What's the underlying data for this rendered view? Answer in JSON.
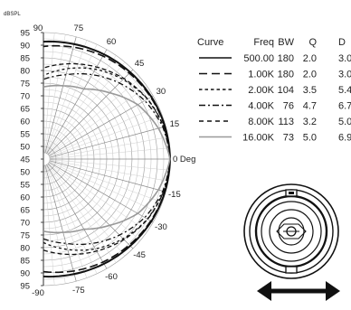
{
  "polar_plot": {
    "unit_label": "dBSPL",
    "db_labels": [
      "95",
      "90",
      "85",
      "80",
      "75",
      "70",
      "65",
      "60",
      "55",
      "50",
      "45",
      "50",
      "55",
      "60",
      "65",
      "70",
      "75",
      "80",
      "85",
      "90",
      "95"
    ],
    "angle_labels": [
      {
        "deg": 90,
        "text": "90"
      },
      {
        "deg": 75,
        "text": "75"
      },
      {
        "deg": 60,
        "text": "60"
      },
      {
        "deg": 45,
        "text": "45"
      },
      {
        "deg": 30,
        "text": "30"
      },
      {
        "deg": 15,
        "text": "15"
      },
      {
        "deg": 0,
        "text": "0 Deg"
      },
      {
        "deg": -15,
        "text": "-15"
      },
      {
        "deg": -30,
        "text": "-30"
      },
      {
        "deg": -45,
        "text": "-45"
      },
      {
        "deg": -60,
        "text": "-60"
      },
      {
        "deg": -75,
        "text": "-75"
      },
      {
        "deg": -90,
        "text": "-90"
      }
    ]
  },
  "legend": {
    "headers": {
      "curve": "Curve",
      "freq": "Freq",
      "bw": "BW",
      "q": "Q",
      "d": "D"
    },
    "rows": [
      {
        "style": "solid",
        "color": "#111111",
        "freq": "500.00",
        "bw": "180",
        "q": "2.0",
        "d": "3.0"
      },
      {
        "style": "long-dash",
        "color": "#111111",
        "freq": "1.00K",
        "bw": "180",
        "q": "2.0",
        "d": "3.0"
      },
      {
        "style": "short-dash",
        "color": "#111111",
        "freq": "2.00K",
        "bw": "104",
        "q": "3.5",
        "d": "5.4"
      },
      {
        "style": "dash-dot",
        "color": "#111111",
        "freq": "4.00K",
        "bw": "76",
        "q": "4.7",
        "d": "6.7"
      },
      {
        "style": "medium-dash",
        "color": "#111111",
        "freq": "8.00K",
        "bw": "113",
        "q": "3.2",
        "d": "5.0"
      },
      {
        "style": "solid-grey",
        "color": "#999999",
        "freq": "16.00K",
        "bw": "73",
        "q": "5.0",
        "d": "6.9"
      }
    ]
  },
  "curves": [
    {
      "freq": "500.00",
      "dash": "",
      "color": "#111111",
      "width": 2.0,
      "points": [
        [
          0,
          0
        ],
        [
          15,
          -0.3
        ],
        [
          30,
          -0.8
        ],
        [
          45,
          -1.5
        ],
        [
          60,
          -2.2
        ],
        [
          75,
          -3.0
        ],
        [
          90,
          -3.6
        ]
      ]
    },
    {
      "freq": "1.00K",
      "dash": "9 4",
      "color": "#111111",
      "width": 1.6,
      "points": [
        [
          0,
          0
        ],
        [
          15,
          -0.4
        ],
        [
          30,
          -1.1
        ],
        [
          45,
          -2.0
        ],
        [
          60,
          -3.0
        ],
        [
          75,
          -4.2
        ],
        [
          90,
          -5.5
        ]
      ]
    },
    {
      "freq": "2.00K",
      "dash": "3 3",
      "color": "#111111",
      "width": 1.3,
      "points": [
        [
          0,
          0
        ],
        [
          15,
          -0.9
        ],
        [
          30,
          -2.6
        ],
        [
          45,
          -5.5
        ],
        [
          60,
          -9.0
        ],
        [
          75,
          -13.0
        ],
        [
          90,
          -17.0
        ]
      ]
    },
    {
      "freq": "4.00K",
      "dash": "6 3 2 3",
      "color": "#111111",
      "width": 1.3,
      "points": [
        [
          0,
          0
        ],
        [
          15,
          -1.2
        ],
        [
          30,
          -3.8
        ],
        [
          45,
          -7.5
        ],
        [
          60,
          -11.5
        ],
        [
          75,
          -15.5
        ],
        [
          90,
          -18.5
        ]
      ]
    },
    {
      "freq": "8.00K",
      "dash": "5 3",
      "color": "#111111",
      "width": 1.3,
      "points": [
        [
          0,
          0
        ],
        [
          15,
          -0.8
        ],
        [
          30,
          -2.5
        ],
        [
          45,
          -5.0
        ],
        [
          60,
          -8.0
        ],
        [
          75,
          -11.0
        ],
        [
          90,
          -14.0
        ]
      ]
    },
    {
      "freq": "16.00K",
      "dash": "",
      "color": "#999999",
      "width": 1.6,
      "points": [
        [
          0,
          0
        ],
        [
          15,
          -3.0
        ],
        [
          30,
          -7.0
        ],
        [
          45,
          -13.0
        ],
        [
          60,
          -18.0
        ],
        [
          75,
          -20.0
        ],
        [
          90,
          -21.5
        ]
      ]
    }
  ]
}
